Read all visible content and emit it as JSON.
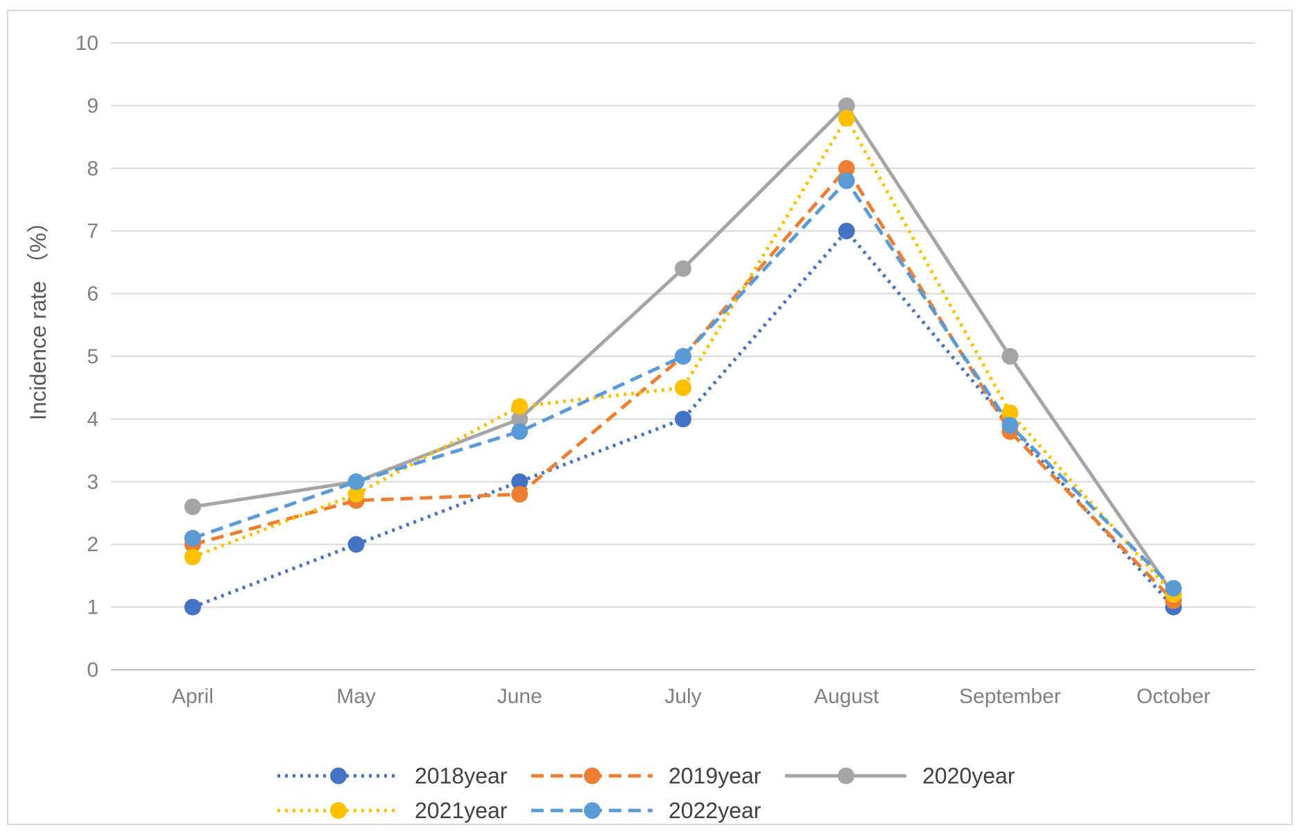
{
  "chart_data": {
    "type": "line",
    "title": "",
    "xlabel": "",
    "ylabel": "Incidence rate （%）",
    "categories": [
      "April",
      "May",
      "June",
      "July",
      "August",
      "September",
      "October"
    ],
    "ylim": [
      0,
      10
    ],
    "yticks": [
      0,
      1,
      2,
      3,
      4,
      5,
      6,
      7,
      8,
      9,
      10
    ],
    "grid": true,
    "legend_position": "bottom",
    "series": [
      {
        "name": "2018year",
        "color": "#4472C4",
        "line_style": "dotted",
        "values": [
          1,
          2,
          3,
          4,
          7,
          3.9,
          1
        ]
      },
      {
        "name": "2019year",
        "color": "#ED7D31",
        "line_style": "dashed",
        "values": [
          2,
          2.7,
          2.8,
          5,
          8,
          3.8,
          1.1
        ]
      },
      {
        "name": "2020year",
        "color": "#A5A5A5",
        "line_style": "solid",
        "values": [
          2.6,
          3,
          4,
          6.4,
          9,
          5,
          1.2
        ]
      },
      {
        "name": "2021year",
        "color": "#FFC000",
        "line_style": "dotted",
        "values": [
          1.8,
          2.8,
          4.2,
          4.5,
          8.8,
          4.1,
          1.2
        ]
      },
      {
        "name": "2022year",
        "color": "#5B9BD5",
        "line_style": "dashed",
        "values": [
          2.1,
          3,
          3.8,
          5,
          7.8,
          3.9,
          1.3
        ]
      }
    ]
  }
}
